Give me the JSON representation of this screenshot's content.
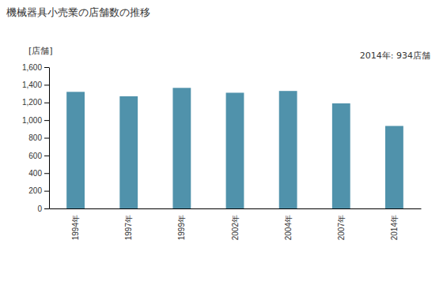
{
  "chart_data": {
    "type": "bar",
    "title": "機械器具小売業の店舗数の推移",
    "y_label": "[店舗]",
    "annotation": "2014年: 934店舗",
    "categories": [
      "1994年",
      "1997年",
      "1999年",
      "2002年",
      "2004年",
      "2007年",
      "2014年"
    ],
    "values": [
      1320,
      1270,
      1365,
      1310,
      1330,
      1190,
      934
    ],
    "color": "#5092ab",
    "ylim": [
      0,
      1600
    ],
    "yticks": [
      0,
      200,
      400,
      600,
      800,
      {
        "value": 1000,
        "label": "1,000"
      },
      {
        "value": 1200,
        "label": "1,200"
      },
      {
        "value": 1400,
        "label": "1,400"
      },
      {
        "value": 1600,
        "label": "1,600"
      }
    ],
    "grid": false
  }
}
